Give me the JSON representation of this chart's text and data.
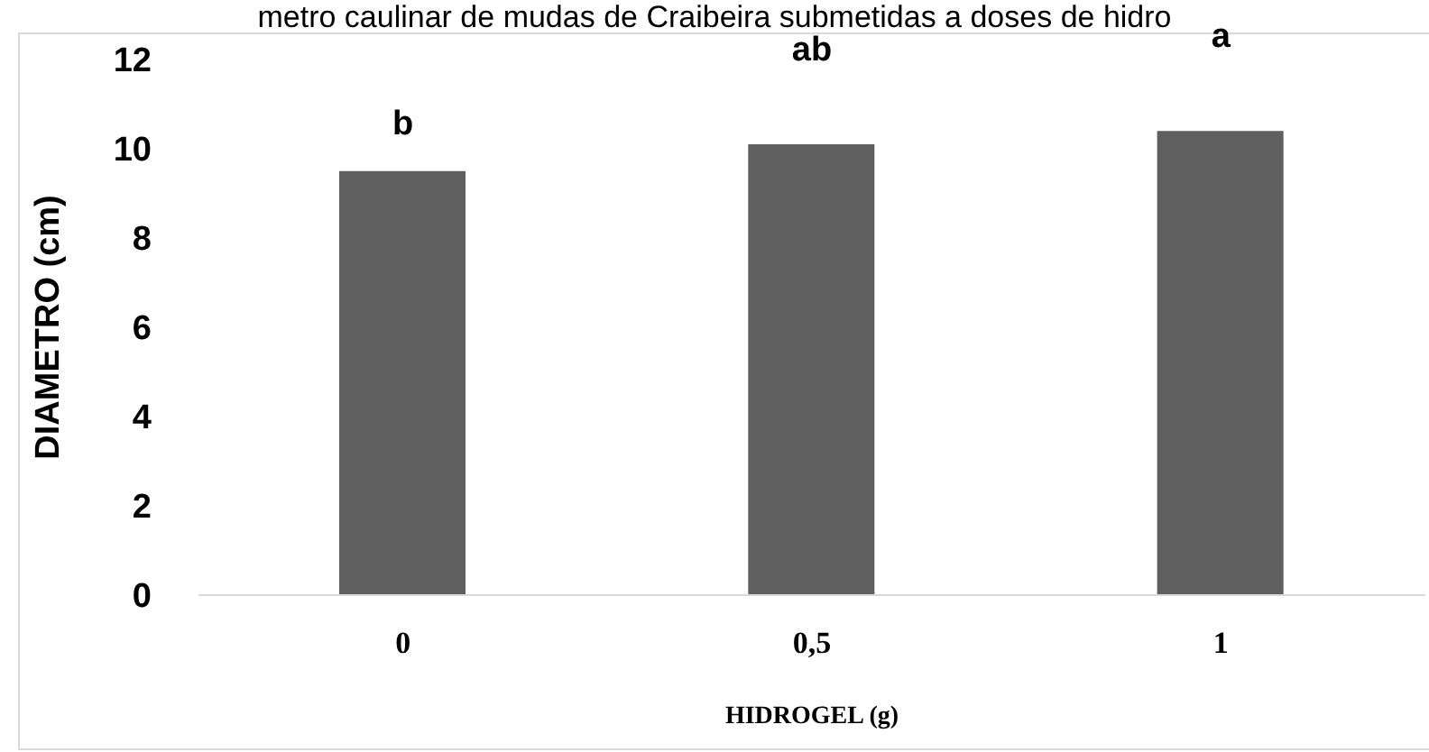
{
  "chart_data": {
    "type": "bar",
    "title": "metro caulinar de mudas de Craibeira submetidas a doses de hidro",
    "xlabel": "HIDROGEL (g)",
    "ylabel": "DIAMETRO (cm)",
    "categories": [
      "0",
      "0,5",
      "1"
    ],
    "values": [
      9.5,
      10.1,
      10.4
    ],
    "color": "#5f5f5f",
    "ylim": [
      0,
      12
    ],
    "yticks": [
      0,
      2,
      4,
      6,
      8,
      10,
      12
    ],
    "grid": false,
    "legend": false,
    "annotations": [
      "b",
      "ab",
      "a"
    ]
  }
}
